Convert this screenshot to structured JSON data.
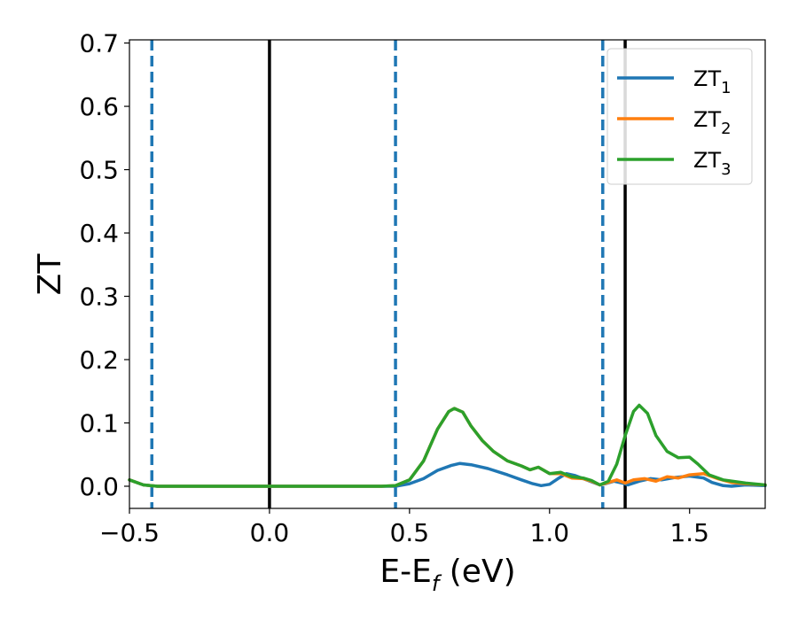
{
  "chart_data": {
    "type": "line",
    "title": "",
    "xlabel": "E-E",
    "xlabel_sub": "f",
    "xlabel_unit": " (eV)",
    "ylabel": "ZT",
    "xlim": [
      -0.5,
      1.77
    ],
    "ylim": [
      -0.035,
      0.705
    ],
    "xticks": [
      -0.5,
      0.0,
      0.5,
      1.0,
      1.5
    ],
    "xtick_labels": [
      "−0.5",
      "0.0",
      "0.5",
      "1.0",
      "1.5"
    ],
    "yticks": [
      0.0,
      0.1,
      0.2,
      0.3,
      0.4,
      0.5,
      0.6,
      0.7
    ],
    "ytick_labels": [
      "0.0",
      "0.1",
      "0.2",
      "0.3",
      "0.4",
      "0.5",
      "0.6",
      "0.7"
    ],
    "grid": false,
    "legend_position": "top-right",
    "vlines": [
      {
        "x": -0.42,
        "style": "dashed",
        "color": "#1f77b4"
      },
      {
        "x": 0.0,
        "style": "solid",
        "color": "#000000"
      },
      {
        "x": 0.45,
        "style": "dashed",
        "color": "#1f77b4"
      },
      {
        "x": 1.19,
        "style": "dashed",
        "color": "#1f77b4"
      },
      {
        "x": 1.27,
        "style": "solid",
        "color": "#000000"
      }
    ],
    "series": [
      {
        "name": "ZT",
        "name_sub": "1",
        "color": "#1f77b4",
        "points": [
          [
            -0.5,
            0.01
          ],
          [
            -0.45,
            0.002
          ],
          [
            -0.4,
            0
          ],
          [
            0.0,
            0
          ],
          [
            0.4,
            0
          ],
          [
            0.45,
            0
          ],
          [
            0.5,
            0.004
          ],
          [
            0.55,
            0.012
          ],
          [
            0.6,
            0.025
          ],
          [
            0.65,
            0.033
          ],
          [
            0.68,
            0.036
          ],
          [
            0.72,
            0.034
          ],
          [
            0.78,
            0.028
          ],
          [
            0.85,
            0.018
          ],
          [
            0.9,
            0.01
          ],
          [
            0.94,
            0.004
          ],
          [
            0.97,
            0.001
          ],
          [
            1.0,
            0.003
          ],
          [
            1.03,
            0.012
          ],
          [
            1.06,
            0.02
          ],
          [
            1.09,
            0.017
          ],
          [
            1.12,
            0.012
          ],
          [
            1.15,
            0.007
          ],
          [
            1.18,
            0.002
          ],
          [
            1.2,
            0.004
          ],
          [
            1.23,
            0.008
          ],
          [
            1.26,
            0.005
          ],
          [
            1.28,
            0.002
          ],
          [
            1.32,
            0.008
          ],
          [
            1.36,
            0.012
          ],
          [
            1.4,
            0.01
          ],
          [
            1.45,
            0.014
          ],
          [
            1.5,
            0.016
          ],
          [
            1.55,
            0.013
          ],
          [
            1.58,
            0.006
          ],
          [
            1.62,
            0.001
          ],
          [
            1.65,
            0
          ],
          [
            1.7,
            0.002
          ],
          [
            1.77,
            0.001
          ]
        ]
      },
      {
        "name": "ZT",
        "name_sub": "2",
        "color": "#ff7f0e",
        "points": [
          [
            -0.5,
            0.01
          ],
          [
            -0.45,
            0.002
          ],
          [
            -0.4,
            0
          ],
          [
            0.0,
            0
          ],
          [
            0.4,
            0
          ],
          [
            0.45,
            0.001
          ],
          [
            0.5,
            0.01
          ],
          [
            0.55,
            0.04
          ],
          [
            0.6,
            0.09
          ],
          [
            0.64,
            0.118
          ],
          [
            0.66,
            0.123
          ],
          [
            0.69,
            0.117
          ],
          [
            0.72,
            0.095
          ],
          [
            0.76,
            0.072
          ],
          [
            0.8,
            0.055
          ],
          [
            0.85,
            0.04
          ],
          [
            0.9,
            0.032
          ],
          [
            0.93,
            0.026
          ],
          [
            0.96,
            0.03
          ],
          [
            1.0,
            0.02
          ],
          [
            1.04,
            0.02
          ],
          [
            1.08,
            0.013
          ],
          [
            1.12,
            0.012
          ],
          [
            1.15,
            0.008
          ],
          [
            1.18,
            0.002
          ],
          [
            1.21,
            0.006
          ],
          [
            1.24,
            0.01
          ],
          [
            1.27,
            0.005
          ],
          [
            1.3,
            0.01
          ],
          [
            1.34,
            0.012
          ],
          [
            1.38,
            0.008
          ],
          [
            1.42,
            0.015
          ],
          [
            1.46,
            0.013
          ],
          [
            1.5,
            0.018
          ],
          [
            1.55,
            0.02
          ],
          [
            1.6,
            0.012
          ],
          [
            1.65,
            0.006
          ],
          [
            1.7,
            0.004
          ],
          [
            1.77,
            0.002
          ]
        ]
      },
      {
        "name": "ZT",
        "name_sub": "3",
        "color": "#2ca02c",
        "points": [
          [
            -0.5,
            0.01
          ],
          [
            -0.45,
            0.002
          ],
          [
            -0.4,
            0
          ],
          [
            0.0,
            0
          ],
          [
            0.4,
            0
          ],
          [
            0.45,
            0.001
          ],
          [
            0.5,
            0.01
          ],
          [
            0.55,
            0.04
          ],
          [
            0.6,
            0.09
          ],
          [
            0.64,
            0.118
          ],
          [
            0.66,
            0.123
          ],
          [
            0.69,
            0.117
          ],
          [
            0.72,
            0.095
          ],
          [
            0.76,
            0.072
          ],
          [
            0.8,
            0.055
          ],
          [
            0.85,
            0.04
          ],
          [
            0.9,
            0.032
          ],
          [
            0.93,
            0.026
          ],
          [
            0.96,
            0.03
          ],
          [
            1.0,
            0.02
          ],
          [
            1.04,
            0.022
          ],
          [
            1.08,
            0.015
          ],
          [
            1.12,
            0.013
          ],
          [
            1.15,
            0.009
          ],
          [
            1.18,
            0.002
          ],
          [
            1.21,
            0.008
          ],
          [
            1.24,
            0.035
          ],
          [
            1.27,
            0.08
          ],
          [
            1.3,
            0.118
          ],
          [
            1.32,
            0.128
          ],
          [
            1.35,
            0.115
          ],
          [
            1.38,
            0.08
          ],
          [
            1.42,
            0.055
          ],
          [
            1.46,
            0.045
          ],
          [
            1.5,
            0.046
          ],
          [
            1.53,
            0.035
          ],
          [
            1.57,
            0.018
          ],
          [
            1.62,
            0.01
          ],
          [
            1.7,
            0.005
          ],
          [
            1.77,
            0.002
          ]
        ]
      }
    ]
  }
}
